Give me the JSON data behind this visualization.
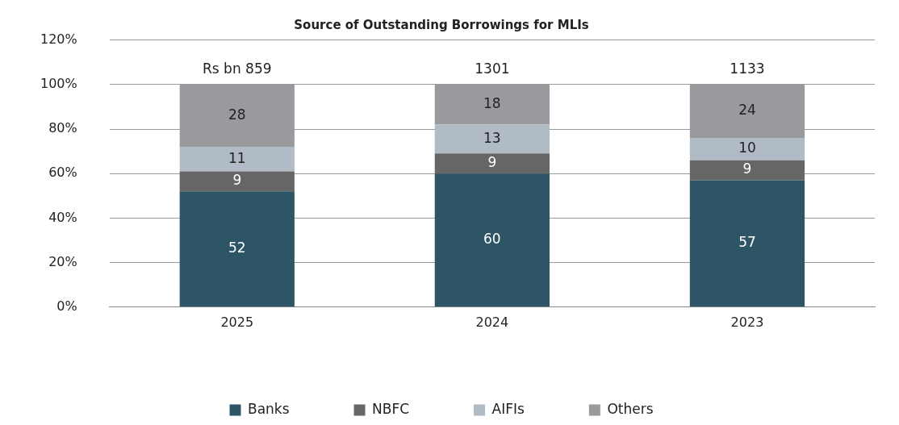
{
  "chart_data": {
    "type": "bar",
    "title": "Source of Outstanding Borrowings for MLIs",
    "categories": [
      "2025",
      "2024",
      "2023"
    ],
    "series": [
      {
        "name": "Banks",
        "color": "#2e5566",
        "values": [
          52,
          60,
          57
        ]
      },
      {
        "name": "NBFC",
        "color": "#666666",
        "values": [
          9,
          9,
          9
        ]
      },
      {
        "name": "AIFIs",
        "color": "#b0bbc6",
        "values": [
          11,
          13,
          10
        ]
      },
      {
        "name": "Others",
        "color": "#9a9a9e",
        "values": [
          28,
          18,
          24
        ]
      }
    ],
    "stacked": true,
    "ylim": [
      0,
      120
    ],
    "yticks": [
      {
        "value": 0,
        "label": "0%"
      },
      {
        "value": 20,
        "label": "20%"
      },
      {
        "value": 40,
        "label": "40%"
      },
      {
        "value": 60,
        "label": "60%"
      },
      {
        "value": 80,
        "label": "80%"
      },
      {
        "value": 100,
        "label": "100%"
      },
      {
        "value": 120,
        "label": "120%"
      }
    ],
    "grid": "y",
    "legend": "bottom",
    "data_labels": true,
    "annotations": [
      {
        "text": "Rs bn 859",
        "x": "2025",
        "y": 100
      },
      {
        "text": "1301",
        "x": "2024",
        "y": 100
      },
      {
        "text": "1133",
        "x": "2023",
        "y": 100
      }
    ]
  }
}
